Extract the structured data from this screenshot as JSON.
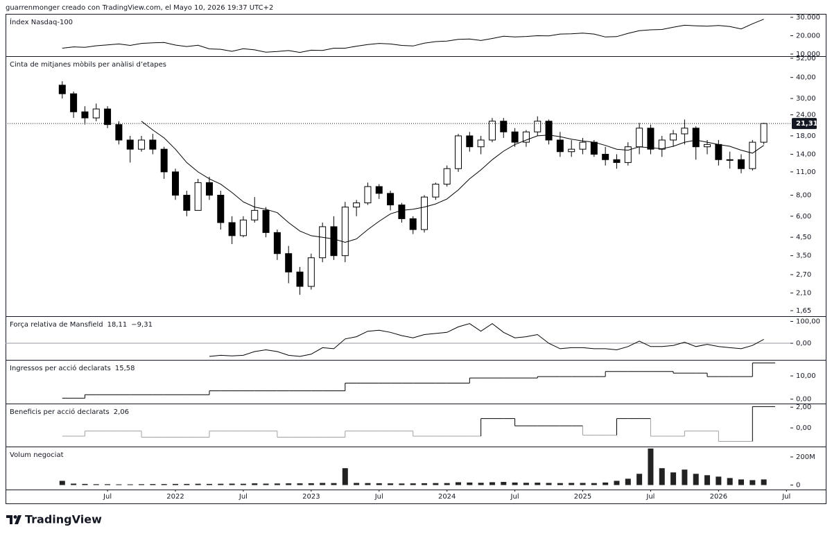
{
  "header": {
    "text": "guarrenmonger creado con TradingView.com, el Mayo 10, 2026 19:37 UTC+2"
  },
  "footer": {
    "logo": "TradingView"
  },
  "chart_data": [
    {
      "type": "line",
      "title": "Índex Nasdaq-100",
      "color": "#000000",
      "x": [
        "2021-03",
        "2021-04",
        "2021-05",
        "2021-06",
        "2021-07",
        "2021-08",
        "2021-09",
        "2021-10",
        "2021-11",
        "2021-12",
        "2022-01",
        "2022-02",
        "2022-03",
        "2022-04",
        "2022-05",
        "2022-06",
        "2022-07",
        "2022-08",
        "2022-09",
        "2022-10",
        "2022-11",
        "2022-12",
        "2023-01",
        "2023-02",
        "2023-03",
        "2023-04",
        "2023-05",
        "2023-06",
        "2023-07",
        "2023-08",
        "2023-09",
        "2023-10",
        "2023-11",
        "2023-12",
        "2024-01",
        "2024-02",
        "2024-03",
        "2024-04",
        "2024-05",
        "2024-06",
        "2024-07",
        "2024-08",
        "2024-09",
        "2024-10",
        "2024-11",
        "2024-12",
        "2025-01",
        "2025-02",
        "2025-03",
        "2025-04",
        "2025-05",
        "2025-06",
        "2025-07",
        "2025-08",
        "2025-09",
        "2025-10",
        "2025-11",
        "2025-12",
        "2026-01",
        "2026-02",
        "2026-03",
        "2026-04",
        "2026-05"
      ],
      "values": [
        13200,
        13900,
        13700,
        14500,
        15000,
        15500,
        14700,
        15800,
        16100,
        16300,
        14900,
        14100,
        14800,
        12800,
        12600,
        11500,
        12900,
        12300,
        11000,
        11400,
        11900,
        10900,
        12100,
        12000,
        13200,
        13200,
        14300,
        15200,
        15800,
        15500,
        14700,
        14400,
        15900,
        16800,
        17100,
        18000,
        18200,
        17400,
        18500,
        19700,
        19300,
        19600,
        20000,
        19900,
        20900,
        21000,
        21400,
        20900,
        19300,
        19500,
        21300,
        22700,
        23200,
        23400,
        24600,
        25700,
        25400,
        25200,
        25600,
        25000,
        23700,
        26500,
        29000
      ],
      "ylim": [
        8850,
        31900
      ],
      "yticks": [
        {
          "value": 10000,
          "label": "10.000"
        },
        {
          "value": 20000,
          "label": "20.000"
        },
        {
          "value": 30000,
          "label": "30.000"
        }
      ]
    },
    {
      "type": "candlestick",
      "title": "Cinta de mitjanes mòbils per anàlisi d’etapes",
      "log_scale": true,
      "up_color": "#ffffff",
      "down_color": "#000000",
      "ma_color": "#000000",
      "last_label": "21,31",
      "x": [
        "2021-03",
        "2021-04",
        "2021-05",
        "2021-06",
        "2021-07",
        "2021-08",
        "2021-09",
        "2021-10",
        "2021-11",
        "2021-12",
        "2022-01",
        "2022-02",
        "2022-03",
        "2022-04",
        "2022-05",
        "2022-06",
        "2022-07",
        "2022-08",
        "2022-09",
        "2022-10",
        "2022-11",
        "2022-12",
        "2023-01",
        "2023-02",
        "2023-03",
        "2023-04",
        "2023-05",
        "2023-06",
        "2023-07",
        "2023-08",
        "2023-09",
        "2023-10",
        "2023-11",
        "2023-12",
        "2024-01",
        "2024-02",
        "2024-03",
        "2024-04",
        "2024-05",
        "2024-06",
        "2024-07",
        "2024-08",
        "2024-09",
        "2024-10",
        "2024-11",
        "2024-12",
        "2025-01",
        "2025-02",
        "2025-03",
        "2025-04",
        "2025-05",
        "2025-06",
        "2025-07",
        "2025-08",
        "2025-09",
        "2025-10",
        "2025-11",
        "2025-12",
        "2026-01",
        "2026-02",
        "2026-03",
        "2026-04",
        "2026-05"
      ],
      "open": [
        36,
        32,
        25,
        23,
        26,
        21,
        17,
        15,
        17,
        15,
        11,
        8,
        6.5,
        9.5,
        8,
        5.5,
        4.6,
        5.7,
        6.5,
        4.8,
        3.6,
        2.8,
        2.3,
        3.4,
        5.2,
        3.5,
        6.8,
        7.2,
        9,
        8.2,
        7,
        5.8,
        5,
        7.8,
        9.3,
        11.5,
        18,
        15.5,
        17,
        22,
        19,
        16.5,
        19,
        22,
        17,
        14.5,
        15,
        16.5,
        14,
        13,
        12.5,
        15.5,
        20,
        15,
        17,
        18.5,
        20,
        15.5,
        16,
        13,
        13,
        11.5,
        16.5
      ],
      "high": [
        38,
        33,
        27,
        28,
        27,
        22,
        18,
        18,
        18.5,
        15.5,
        11.5,
        8.5,
        10,
        10.3,
        8.5,
        6,
        6,
        7.8,
        6.8,
        5,
        4,
        3,
        3.6,
        5.5,
        6,
        7.3,
        7.5,
        9.5,
        9.3,
        8.5,
        7.2,
        6,
        8,
        9.5,
        12,
        18.5,
        19,
        18,
        23,
        23,
        20,
        19.5,
        23.5,
        22.5,
        19,
        17,
        17.5,
        17,
        15.5,
        14,
        16.5,
        21.5,
        21,
        18,
        19.5,
        22.5,
        20.5,
        17,
        17,
        14.5,
        14,
        17,
        21.5
      ],
      "low": [
        30,
        23,
        21,
        22,
        20,
        16,
        12.5,
        14.5,
        14,
        10,
        7.5,
        6,
        6.5,
        7.5,
        5,
        4.1,
        4.5,
        5.5,
        4.5,
        3.3,
        2.4,
        2.05,
        2.2,
        3.2,
        3.3,
        3.2,
        6,
        7,
        7.6,
        6.5,
        5.5,
        4.7,
        4.8,
        7.5,
        9,
        11,
        14.5,
        14,
        16.5,
        17.5,
        15.5,
        15.5,
        18,
        16,
        13.5,
        13.5,
        14,
        13.5,
        12,
        11.5,
        12,
        14,
        14,
        13.5,
        15.5,
        16,
        13,
        14,
        12,
        11.5,
        10.8,
        11.2,
        16
      ],
      "close": [
        32,
        25,
        23,
        26,
        21,
        17,
        15,
        17,
        15,
        11,
        8,
        6.5,
        9.5,
        8,
        5.5,
        4.6,
        5.7,
        6.5,
        4.8,
        3.6,
        2.8,
        2.3,
        3.4,
        5.2,
        3.5,
        6.8,
        7.2,
        9,
        8.2,
        7,
        5.8,
        5,
        7.8,
        9.3,
        11.5,
        18,
        15.5,
        17,
        22,
        19,
        16.5,
        19,
        22,
        17,
        14.5,
        15,
        16.5,
        14,
        13,
        12.5,
        15.5,
        20,
        15,
        17,
        18.5,
        20,
        15.5,
        16,
        13,
        13,
        11.5,
        16.5,
        21.31
      ],
      "moving_average": [
        null,
        null,
        null,
        null,
        null,
        null,
        null,
        22,
        19.5,
        17.5,
        15,
        12.5,
        11,
        10,
        9.3,
        8.3,
        7.3,
        6.8,
        6.6,
        6.3,
        5.5,
        4.9,
        4.6,
        4.5,
        4.4,
        4.2,
        4.4,
        5,
        5.6,
        6.2,
        6.5,
        6.6,
        6.8,
        7.1,
        7.6,
        8.6,
        10,
        11.3,
        13,
        14.6,
        16,
        17,
        18,
        18.2,
        17.8,
        17.2,
        16.8,
        16.5,
        15.8,
        15,
        14.8,
        15.5,
        15.3,
        15.1,
        15.6,
        16.5,
        17,
        16.5,
        16,
        15.6,
        14.8,
        14.2,
        15.8
      ],
      "ylim": [
        1.53,
        53.5
      ],
      "yticks": [
        {
          "value": 1.65,
          "label": "1,65"
        },
        {
          "value": 2.1,
          "label": "2,10"
        },
        {
          "value": 2.7,
          "label": "2,70"
        },
        {
          "value": 3.5,
          "label": "3,50"
        },
        {
          "value": 4.5,
          "label": "4,50"
        },
        {
          "value": 6,
          "label": "6,00"
        },
        {
          "value": 8,
          "label": "8,00"
        },
        {
          "value": 11,
          "label": "11,00"
        },
        {
          "value": 14,
          "label": "14,00"
        },
        {
          "value": 18,
          "label": "18,00"
        },
        {
          "value": 24,
          "label": "24,00"
        },
        {
          "value": 30,
          "label": "30,00"
        },
        {
          "value": 40,
          "label": "40,00"
        },
        {
          "value": 52,
          "label": "52,00"
        }
      ]
    },
    {
      "type": "line",
      "title": "Força relativa de Mansfield",
      "legend_values": [
        "18,11",
        "−9,31"
      ],
      "color": "#000000",
      "zero_line": true,
      "x": [
        "2021-03",
        "2021-04",
        "2021-05",
        "2021-06",
        "2021-07",
        "2021-08",
        "2021-09",
        "2021-10",
        "2021-11",
        "2021-12",
        "2022-01",
        "2022-02",
        "2022-03",
        "2022-04",
        "2022-05",
        "2022-06",
        "2022-07",
        "2022-08",
        "2022-09",
        "2022-10",
        "2022-11",
        "2022-12",
        "2023-01",
        "2023-02",
        "2023-03",
        "2023-04",
        "2023-05",
        "2023-06",
        "2023-07",
        "2023-08",
        "2023-09",
        "2023-10",
        "2023-11",
        "2023-12",
        "2024-01",
        "2024-02",
        "2024-03",
        "2024-04",
        "2024-05",
        "2024-06",
        "2024-07",
        "2024-08",
        "2024-09",
        "2024-10",
        "2024-11",
        "2024-12",
        "2025-01",
        "2025-02",
        "2025-03",
        "2025-04",
        "2025-05",
        "2025-06",
        "2025-07",
        "2025-08",
        "2025-09",
        "2025-10",
        "2025-11",
        "2025-12",
        "2026-01",
        "2026-02",
        "2026-03",
        "2026-04",
        "2026-05"
      ],
      "values": [
        null,
        null,
        null,
        null,
        null,
        null,
        null,
        null,
        null,
        null,
        null,
        null,
        null,
        -60,
        -55,
        -58,
        -55,
        -38,
        -30,
        -38,
        -55,
        -60,
        -50,
        -20,
        -25,
        20,
        30,
        55,
        60,
        50,
        35,
        25,
        40,
        45,
        50,
        75,
        90,
        55,
        90,
        50,
        25,
        30,
        40,
        0,
        -25,
        -20,
        -20,
        -25,
        -25,
        -30,
        -15,
        10,
        -15,
        -15,
        -10,
        5,
        -15,
        -5,
        -15,
        -20,
        -25,
        -10,
        18.11
      ],
      "ylim": [
        -76,
        124
      ],
      "yticks": [
        {
          "value": 0,
          "label": "0,00"
        },
        {
          "value": 100,
          "label": "100,00"
        }
      ]
    },
    {
      "type": "step",
      "title": "Ingressos per acció declarats",
      "legend_values": [
        "15,58"
      ],
      "color": "#000000",
      "x": [
        "2021-03",
        "2021-04",
        "2021-05",
        "2021-06",
        "2021-07",
        "2021-08",
        "2021-09",
        "2021-10",
        "2021-11",
        "2021-12",
        "2022-01",
        "2022-02",
        "2022-03",
        "2022-04",
        "2022-05",
        "2022-06",
        "2022-07",
        "2022-08",
        "2022-09",
        "2022-10",
        "2022-11",
        "2022-12",
        "2023-01",
        "2023-02",
        "2023-03",
        "2023-04",
        "2023-05",
        "2023-06",
        "2023-07",
        "2023-08",
        "2023-09",
        "2023-10",
        "2023-11",
        "2023-12",
        "2024-01",
        "2024-02",
        "2024-03",
        "2024-04",
        "2024-05",
        "2024-06",
        "2024-07",
        "2024-08",
        "2024-09",
        "2024-10",
        "2024-11",
        "2024-12",
        "2025-01",
        "2025-02",
        "2025-03",
        "2025-04",
        "2025-05",
        "2025-06",
        "2025-07",
        "2025-08",
        "2025-09",
        "2025-10",
        "2025-11",
        "2025-12",
        "2026-01",
        "2026-02",
        "2026-03",
        "2026-04",
        "2026-05"
      ],
      "values": [
        0.4,
        0.4,
        1.9,
        1.9,
        1.9,
        1.9,
        1.9,
        1.9,
        1.9,
        1.9,
        1.9,
        1.9,
        1.9,
        3.6,
        3.6,
        3.6,
        3.6,
        3.6,
        3.6,
        3.6,
        3.6,
        3.6,
        3.6,
        3.6,
        3.6,
        6.9,
        6.9,
        6.9,
        6.9,
        6.9,
        6.9,
        6.9,
        6.9,
        6.9,
        6.9,
        6.9,
        9.1,
        9.1,
        9.1,
        9.1,
        9.1,
        9.1,
        9.7,
        9.7,
        9.7,
        9.7,
        9.7,
        9.7,
        11.9,
        11.9,
        11.9,
        11.9,
        11.9,
        11.9,
        11.2,
        11.2,
        11.2,
        9.7,
        9.7,
        9.7,
        9.7,
        15.58,
        15.58
      ],
      "ylim": [
        -1.9,
        16.9
      ],
      "yticks": [
        {
          "value": 0,
          "label": "0,00"
        },
        {
          "value": 10,
          "label": "10,00"
        }
      ]
    },
    {
      "type": "step",
      "title": "Beneficis per acció declarats",
      "legend_values": [
        "2,06"
      ],
      "color": "#000000",
      "negative_color": "#a0a0a0",
      "x": [
        "2021-03",
        "2021-04",
        "2021-05",
        "2021-06",
        "2021-07",
        "2021-08",
        "2021-09",
        "2021-10",
        "2021-11",
        "2021-12",
        "2022-01",
        "2022-02",
        "2022-03",
        "2022-04",
        "2022-05",
        "2022-06",
        "2022-07",
        "2022-08",
        "2022-09",
        "2022-10",
        "2022-11",
        "2022-12",
        "2023-01",
        "2023-02",
        "2023-03",
        "2023-04",
        "2023-05",
        "2023-06",
        "2023-07",
        "2023-08",
        "2023-09",
        "2023-10",
        "2023-11",
        "2023-12",
        "2024-01",
        "2024-02",
        "2024-03",
        "2024-04",
        "2024-05",
        "2024-06",
        "2024-07",
        "2024-08",
        "2024-09",
        "2024-10",
        "2024-11",
        "2024-12",
        "2025-01",
        "2025-02",
        "2025-03",
        "2025-04",
        "2025-05",
        "2025-06",
        "2025-07",
        "2025-08",
        "2025-09",
        "2025-10",
        "2025-11",
        "2025-12",
        "2026-01",
        "2026-02",
        "2026-03",
        "2026-04",
        "2026-05"
      ],
      "values": [
        -0.8,
        -0.8,
        -0.3,
        -0.3,
        -0.3,
        -0.3,
        -0.3,
        -0.9,
        -0.9,
        -0.9,
        -0.9,
        -0.9,
        -0.9,
        -0.3,
        -0.3,
        -0.3,
        -0.3,
        -0.3,
        -0.3,
        -0.9,
        -0.9,
        -0.9,
        -0.9,
        -0.9,
        -0.9,
        -0.3,
        -0.3,
        -0.3,
        -0.3,
        -0.3,
        -0.3,
        -0.8,
        -0.8,
        -0.8,
        -0.8,
        -0.8,
        -0.8,
        0.9,
        0.9,
        0.9,
        0.2,
        0.2,
        0.2,
        0.2,
        0.2,
        0.2,
        -0.7,
        -0.7,
        -0.7,
        0.9,
        0.9,
        0.9,
        -0.8,
        -0.8,
        -0.8,
        -0.3,
        -0.3,
        -0.3,
        -1.3,
        -1.3,
        -1.3,
        2.06,
        2.06
      ],
      "ylim": [
        -1.8,
        2.35
      ],
      "yticks": [
        {
          "value": 0,
          "label": "0,00"
        },
        {
          "value": 2,
          "label": "2,00"
        }
      ]
    },
    {
      "type": "bar",
      "title": "Volum negociat",
      "color": "#222222",
      "x": [
        "2021-03",
        "2021-04",
        "2021-05",
        "2021-06",
        "2021-07",
        "2021-08",
        "2021-09",
        "2021-10",
        "2021-11",
        "2021-12",
        "2022-01",
        "2022-02",
        "2022-03",
        "2022-04",
        "2022-05",
        "2022-06",
        "2022-07",
        "2022-08",
        "2022-09",
        "2022-10",
        "2022-11",
        "2022-12",
        "2023-01",
        "2023-02",
        "2023-03",
        "2023-04",
        "2023-05",
        "2023-06",
        "2023-07",
        "2023-08",
        "2023-09",
        "2023-10",
        "2023-11",
        "2023-12",
        "2024-01",
        "2024-02",
        "2024-03",
        "2024-04",
        "2024-05",
        "2024-06",
        "2024-07",
        "2024-08",
        "2024-09",
        "2024-10",
        "2024-11",
        "2024-12",
        "2025-01",
        "2025-02",
        "2025-03",
        "2025-04",
        "2025-05",
        "2025-06",
        "2025-07",
        "2025-08",
        "2025-09",
        "2025-10",
        "2025-11",
        "2025-12",
        "2026-01",
        "2026-02",
        "2026-03",
        "2026-04",
        "2026-05"
      ],
      "values": [
        30,
        10,
        8,
        6,
        6,
        5,
        5,
        6,
        7,
        7,
        8,
        8,
        9,
        8,
        9,
        10,
        9,
        12,
        10,
        11,
        12,
        12,
        13,
        15,
        14,
        120,
        15,
        14,
        13,
        12,
        11,
        12,
        13,
        14,
        14,
        20,
        18,
        16,
        20,
        22,
        18,
        16,
        17,
        15,
        14,
        15,
        15,
        14,
        18,
        30,
        45,
        80,
        260,
        120,
        90,
        110,
        80,
        70,
        60,
        50,
        40,
        35,
        40
      ],
      "ylim": [
        -32,
        274
      ],
      "yticks": [
        0,
        {
          "value": 200,
          "label": "200M"
        }
      ],
      "xticks": [
        {
          "value": "2021-07",
          "label": "Jul"
        },
        {
          "value": "2022-01",
          "label": "2022"
        },
        {
          "value": "2022-07",
          "label": "Jul"
        },
        {
          "value": "2023-01",
          "label": "2023"
        },
        {
          "value": "2023-07",
          "label": "Jul"
        },
        {
          "value": "2024-01",
          "label": "2024"
        },
        {
          "value": "2024-07",
          "label": "Jul"
        },
        {
          "value": "2025-01",
          "label": "2025"
        },
        {
          "value": "2025-07",
          "label": "Jul"
        },
        {
          "value": "2026-01",
          "label": "2026"
        },
        {
          "value": "2026-07",
          "label": "Jul"
        }
      ]
    }
  ]
}
